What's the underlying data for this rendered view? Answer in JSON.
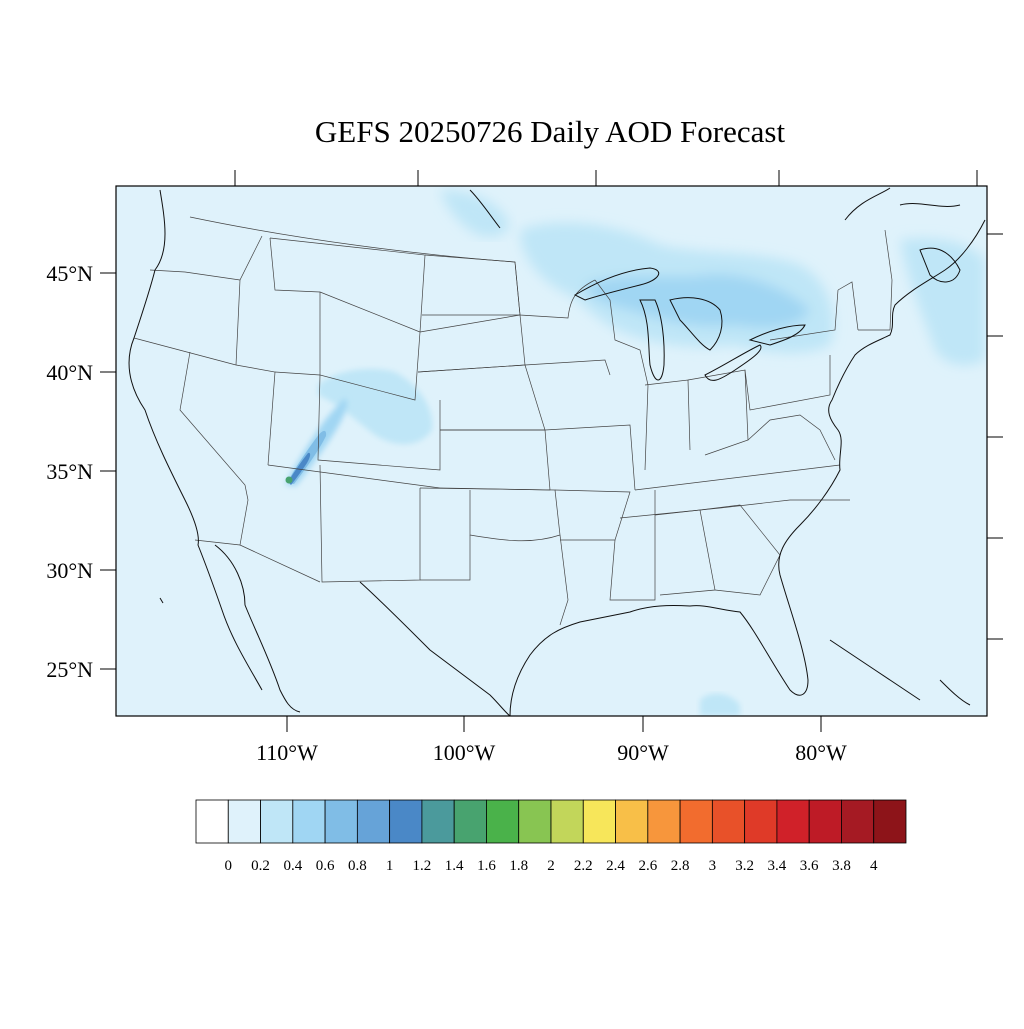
{
  "title": "GEFS 20250726 Daily AOD Forecast",
  "map": {
    "region": "Continental United States",
    "projection": "lambert-conformal",
    "lon_range": [
      -125,
      -62
    ],
    "lat_range": [
      23,
      50
    ],
    "background_color": "#dff2fb",
    "lat_labels": [
      {
        "lat": 45,
        "label": "45°N"
      },
      {
        "lat": 40,
        "label": "40°N"
      },
      {
        "lat": 35,
        "label": "35°N"
      },
      {
        "lat": 30,
        "label": "30°N"
      },
      {
        "lat": 25,
        "label": "25°N"
      }
    ],
    "lon_labels": [
      {
        "lon": -110,
        "label": "110°W"
      },
      {
        "lon": -100,
        "label": "100°W"
      },
      {
        "lon": -90,
        "label": "90°W"
      },
      {
        "lon": -80,
        "label": "80°W"
      }
    ],
    "features": [
      {
        "name": "smoke-plume-four-corners",
        "level": 1.6,
        "description": "plume NE of northern Arizona"
      },
      {
        "name": "aod-great-lakes-region",
        "level": 0.4
      },
      {
        "name": "aod-colorado-region",
        "level": 0.4
      },
      {
        "name": "aod-northern-minnesota",
        "level": 0.4
      }
    ]
  },
  "colorbar": {
    "labels": [
      "0",
      "0.2",
      "0.4",
      "0.6",
      "0.8",
      "1",
      "1.2",
      "1.4",
      "1.6",
      "1.8",
      "2",
      "2.2",
      "2.4",
      "2.6",
      "2.8",
      "3",
      "3.2",
      "3.4",
      "3.6",
      "3.8",
      "4"
    ],
    "colors": [
      "#ffffff",
      "#dff2fb",
      "#bfe6f7",
      "#a0d6f3",
      "#80bde6",
      "#66a3d8",
      "#4a88c7",
      "#4b9a9c",
      "#48a36f",
      "#4ab24a",
      "#88c552",
      "#c2d65a",
      "#f7e65a",
      "#f8bf48",
      "#f7963c",
      "#f26c2e",
      "#e85129",
      "#df3a28",
      "#d02129",
      "#be1b26",
      "#a51a23",
      "#8d1419"
    ]
  }
}
